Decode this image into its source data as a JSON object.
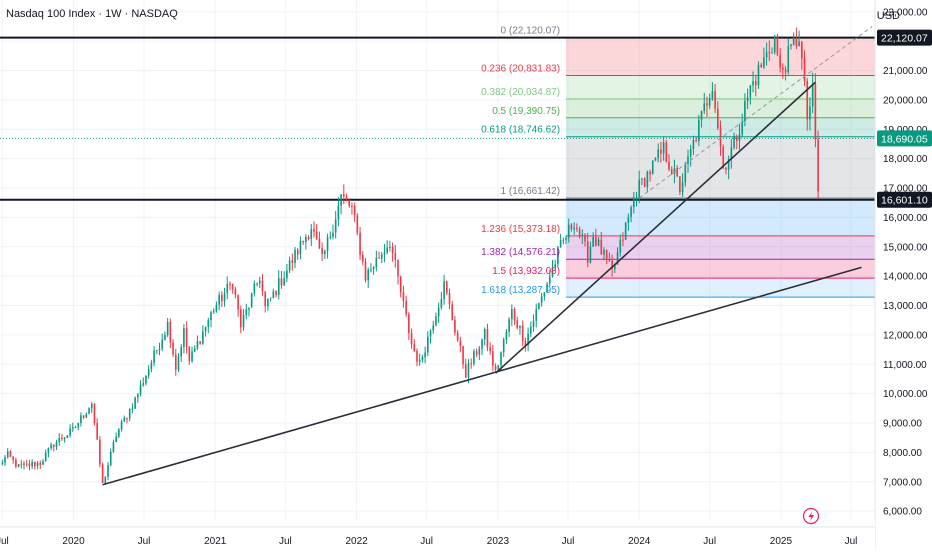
{
  "header": {
    "title": "Nasdaq 100 Index · 1W · NASDAQ",
    "currency": "USD"
  },
  "colors": {
    "up": "#089981",
    "down": "#f23645",
    "grid": "#f0f3fa",
    "axis_text": "#131722",
    "trendline": "#2a2e39",
    "fib_0": "#787b86",
    "fib_236": "#f23645",
    "fib_382": "#81c784",
    "fib_5": "#4caf50",
    "fib_618": "#089981",
    "fib_1": "#787b86",
    "fib_1236": "#f23645",
    "fib_1382": "#9c27b0",
    "fib_15": "#e91e63",
    "fib_1618": "#2196f3",
    "current_price_bg": "#089981",
    "level_label_bg": "#131722"
  },
  "chart_data": {
    "type": "candlestick",
    "symbol": "Nasdaq 100 Index",
    "interval": "1W",
    "exchange": "NASDAQ",
    "y_axis": {
      "ticks": [
        6000,
        7000,
        8000,
        9000,
        10000,
        11000,
        12000,
        13000,
        14000,
        15000,
        16000,
        17000,
        18000,
        19000,
        20000,
        21000,
        22000,
        23000
      ],
      "tick_labels": [
        "6,000.00",
        "7,000.00",
        "8,000.00",
        "9,000.00",
        "10,000.00",
        "11,000.00",
        "12,000.00",
        "13,000.00",
        "14,000.00",
        "15,000.00",
        "16,000.00",
        "17,000.00",
        "18,000.00",
        "19,000.00",
        "20,000.00",
        "21,000.00",
        "22,000.00",
        "23,000.00"
      ],
      "range": [
        5700,
        23400
      ]
    },
    "x_axis": {
      "tick_labels": [
        "Jul",
        "2020",
        "Jul",
        "2021",
        "Jul",
        "2022",
        "Jul",
        "2023",
        "Jul",
        "2024",
        "Jul",
        "2025",
        "Jul"
      ],
      "tick_dates": [
        "2019-07",
        "2020-01",
        "2020-07",
        "2021-01",
        "2021-07",
        "2022-01",
        "2022-07",
        "2023-01",
        "2023-07",
        "2024-01",
        "2024-07",
        "2025-01",
        "2025-07"
      ],
      "range": [
        "2019-06-25",
        "2025-09-01"
      ]
    },
    "price_labels": [
      {
        "value": 22120.07,
        "text": "22,120.07",
        "style": "level"
      },
      {
        "value": 18690.05,
        "text": "18,690.05",
        "style": "current"
      },
      {
        "value": 16601.1,
        "text": "16,601.10",
        "style": "level"
      }
    ],
    "horizontal_lines": [
      22120.07,
      16601.1
    ],
    "current_price": 18690.05,
    "fib_retracement": [
      {
        "ratio": "0",
        "value": 22120.07,
        "label": "0 (22,120.07)"
      },
      {
        "ratio": "0.236",
        "value": 20831.83,
        "label": "0.236 (20,831.83)"
      },
      {
        "ratio": "0.382",
        "value": 20034.87,
        "label": "0.382 (20,034.87)"
      },
      {
        "ratio": "0.5",
        "value": 19390.75,
        "label": "0.5 (19,390.75)"
      },
      {
        "ratio": "0.618",
        "value": 18746.62,
        "label": "0.618 (18,746.62)"
      },
      {
        "ratio": "1",
        "value": 16661.42,
        "label": "1 (16,661.42)"
      },
      {
        "ratio": "1.236",
        "value": 15373.18,
        "label": "1.236 (15,373.18)"
      },
      {
        "ratio": "1.382",
        "value": 14576.21,
        "label": "1.382 (14,576.21)"
      },
      {
        "ratio": "1.5",
        "value": 13932.08,
        "label": "1.5 (13,932.08)"
      },
      {
        "ratio": "1.618",
        "value": 13287.95,
        "label": "1.618 (13,287.95)"
      }
    ],
    "fib_start_date": "2023-06-26",
    "fib_end_date": "2025-09-01",
    "trendlines": [
      {
        "from": {
          "date": "2020-03-16",
          "value": 6900
        },
        "to": {
          "date": "2025-07-28",
          "value": 14300
        }
      },
      {
        "from": {
          "date": "2022-12-26",
          "value": 10700
        },
        "to": {
          "date": "2025-03-31",
          "value": 20600
        }
      },
      {
        "from": {
          "date": "2024-01-01",
          "value": 16661
        },
        "to": {
          "date": "2025-08-25",
          "value": 22500
        },
        "style": "dashed"
      }
    ],
    "anchors": [
      [
        "2019-06-24",
        7600
      ],
      [
        "2019-07-15",
        7900
      ],
      [
        "2019-08-12",
        7500
      ],
      [
        "2019-10-07",
        7650
      ],
      [
        "2019-11-11",
        8300
      ],
      [
        "2019-12-30",
        8750
      ],
      [
        "2020-02-17",
        9700
      ],
      [
        "2020-03-16",
        6900
      ],
      [
        "2020-04-20",
        8600
      ],
      [
        "2020-06-08",
        9800
      ],
      [
        "2020-09-01",
        12400
      ],
      [
        "2020-09-21",
        10900
      ],
      [
        "2020-10-12",
        12100
      ],
      [
        "2020-10-26",
        11100
      ],
      [
        "2020-12-28",
        12900
      ],
      [
        "2021-02-15",
        13800
      ],
      [
        "2021-03-08",
        12300
      ],
      [
        "2021-04-26",
        14000
      ],
      [
        "2021-05-10",
        12900
      ],
      [
        "2021-09-06",
        15700
      ],
      [
        "2021-10-04",
        14500
      ],
      [
        "2021-11-22",
        16700
      ],
      [
        "2021-12-20",
        16300
      ],
      [
        "2022-01-24",
        14000
      ],
      [
        "2022-03-28",
        15200
      ],
      [
        "2022-05-23",
        11700
      ],
      [
        "2022-06-13",
        11000
      ],
      [
        "2022-08-15",
        13700
      ],
      [
        "2022-10-10",
        10700
      ],
      [
        "2022-11-28",
        12000
      ],
      [
        "2022-12-26",
        10700
      ],
      [
        "2023-02-06",
        12800
      ],
      [
        "2023-03-13",
        11800
      ],
      [
        "2023-06-12",
        15000
      ],
      [
        "2023-07-17",
        15900
      ],
      [
        "2023-08-21",
        14700
      ],
      [
        "2023-09-04",
        15400
      ],
      [
        "2023-10-23",
        14100
      ],
      [
        "2023-12-25",
        16900
      ],
      [
        "2024-03-04",
        18300
      ],
      [
        "2024-04-15",
        17000
      ],
      [
        "2024-07-08",
        20600
      ],
      [
        "2024-08-05",
        17700
      ],
      [
        "2024-09-02",
        18500
      ],
      [
        "2024-10-14",
        20400
      ],
      [
        "2024-12-16",
        22100
      ],
      [
        "2024-12-30",
        20900
      ],
      [
        "2025-02-17",
        22220
      ],
      [
        "2025-03-10",
        19400
      ],
      [
        "2025-03-24",
        20200
      ],
      [
        "2025-04-07",
        16900
      ]
    ]
  }
}
